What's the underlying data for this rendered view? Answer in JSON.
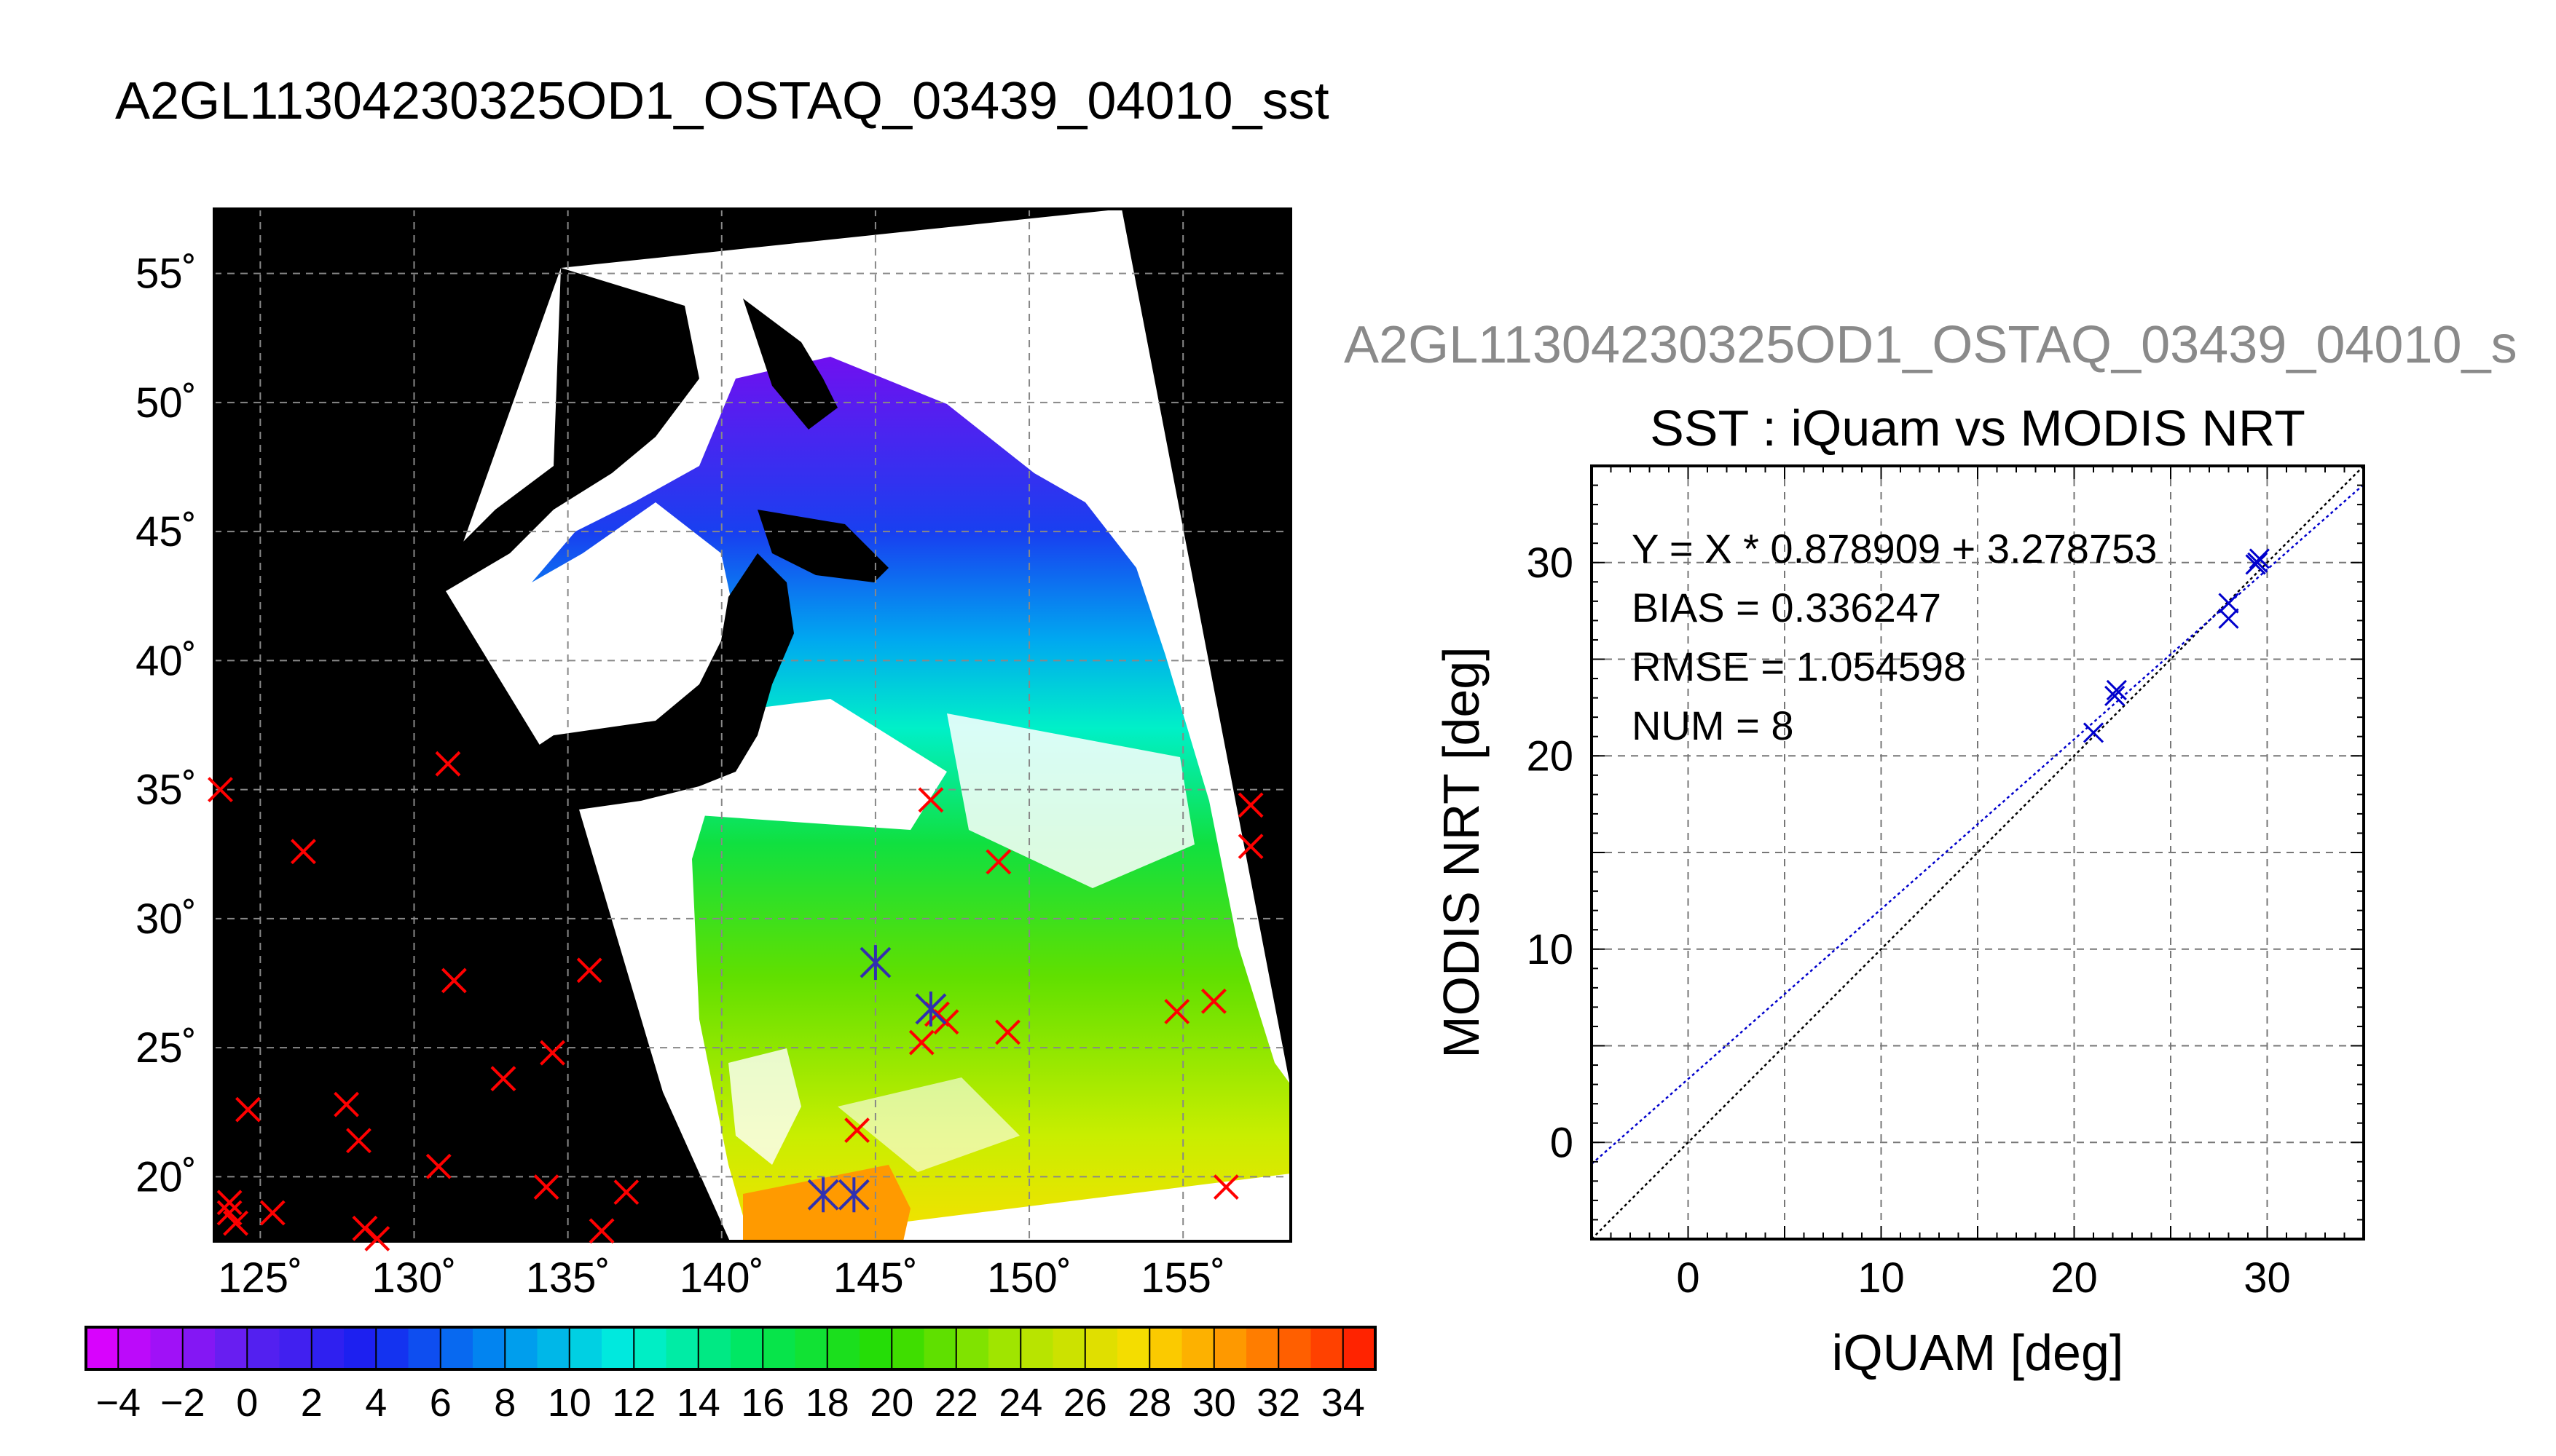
{
  "page_title": "A2GL11304230325OD1_OSTAQ_03439_04010_sst",
  "scatter_panel_title": "A2GL11304230325OD1_OSTAQ_03439_04010_s",
  "chart_data": [
    {
      "type": "heatmap",
      "name": "sst-map",
      "lon_ticks": [
        "125˚",
        "130˚",
        "135˚",
        "140˚",
        "145˚",
        "150˚",
        "155˚"
      ],
      "lat_ticks": [
        "20˚",
        "25˚",
        "30˚",
        "35˚",
        "40˚",
        "45˚",
        "50˚",
        "55˚"
      ],
      "lon_tick_values": [
        125,
        130,
        135,
        140,
        145,
        150,
        155
      ],
      "lat_tick_values": [
        20,
        25,
        30,
        35,
        40,
        45,
        50,
        55
      ],
      "xlim": [
        123.5,
        158.5
      ],
      "ylim": [
        17.5,
        57.5
      ],
      "grid": true,
      "colorbar": {
        "range": [
          -5,
          35
        ],
        "tick_labels": [
          "−4",
          "−2",
          "0",
          "2",
          "4",
          "6",
          "8",
          "10",
          "12",
          "14",
          "16",
          "18",
          "20",
          "22",
          "24",
          "26",
          "28",
          "30",
          "32",
          "34"
        ],
        "tick_values": [
          -4,
          -2,
          0,
          2,
          4,
          6,
          8,
          10,
          12,
          14,
          16,
          18,
          20,
          22,
          24,
          26,
          28,
          30,
          32,
          34
        ]
      },
      "red_x_markers": [
        [
          123.7,
          35.0
        ],
        [
          124.0,
          19.0
        ],
        [
          124.0,
          18.6
        ],
        [
          124.2,
          18.2
        ],
        [
          124.6,
          22.6
        ],
        [
          125.4,
          18.6
        ],
        [
          126.4,
          32.6
        ],
        [
          127.8,
          22.8
        ],
        [
          128.2,
          21.4
        ],
        [
          128.4,
          18.0
        ],
        [
          128.8,
          17.6
        ],
        [
          130.8,
          20.4
        ],
        [
          131.1,
          36.0
        ],
        [
          131.3,
          27.6
        ],
        [
          132.9,
          23.8
        ],
        [
          134.3,
          19.6
        ],
        [
          134.5,
          24.8
        ],
        [
          135.7,
          28.0
        ],
        [
          136.1,
          17.9
        ],
        [
          136.9,
          19.4
        ],
        [
          144.4,
          21.8
        ],
        [
          145.0,
          28.3
        ],
        [
          146.5,
          25.2
        ],
        [
          146.8,
          34.6
        ],
        [
          147.0,
          26.3
        ],
        [
          147.3,
          26.0
        ],
        [
          149.0,
          32.2
        ],
        [
          149.3,
          25.6
        ],
        [
          154.8,
          26.4
        ],
        [
          156.0,
          26.8
        ],
        [
          156.4,
          19.6
        ],
        [
          157.2,
          34.4
        ],
        [
          157.2,
          32.8
        ]
      ],
      "blue_star_markers": [
        [
          143.3,
          19.3
        ],
        [
          144.3,
          19.3
        ],
        [
          145.0,
          28.3
        ],
        [
          146.8,
          26.5
        ]
      ]
    },
    {
      "type": "scatter",
      "name": "iquam-vs-modis",
      "title": "SST : iQuam vs MODIS NRT",
      "xlabel": "iQUAM [deg]",
      "ylabel": "MODIS NRT [deg]",
      "xlim": [
        -5,
        35
      ],
      "ylim": [
        -5,
        35
      ],
      "x_ticks": [
        0,
        10,
        20,
        30
      ],
      "y_ticks": [
        0,
        10,
        20,
        30
      ],
      "grid": true,
      "annotations": [
        "Y = X * 0.878909 + 3.278753",
        "BIAS = 0.336247",
        "RMSE = 1.054598",
        "NUM = 8"
      ],
      "fit_line": {
        "slope": 0.878909,
        "intercept": 3.278753
      },
      "identity_line": true,
      "points": [
        {
          "x": 21.0,
          "y": 21.2
        },
        {
          "x": 22.1,
          "y": 23.1
        },
        {
          "x": 22.2,
          "y": 23.4
        },
        {
          "x": 28.0,
          "y": 27.1
        },
        {
          "x": 28.0,
          "y": 27.9
        },
        {
          "x": 29.5,
          "y": 30.0
        },
        {
          "x": 29.6,
          "y": 30.2
        },
        {
          "x": 29.4,
          "y": 29.9
        }
      ]
    }
  ]
}
